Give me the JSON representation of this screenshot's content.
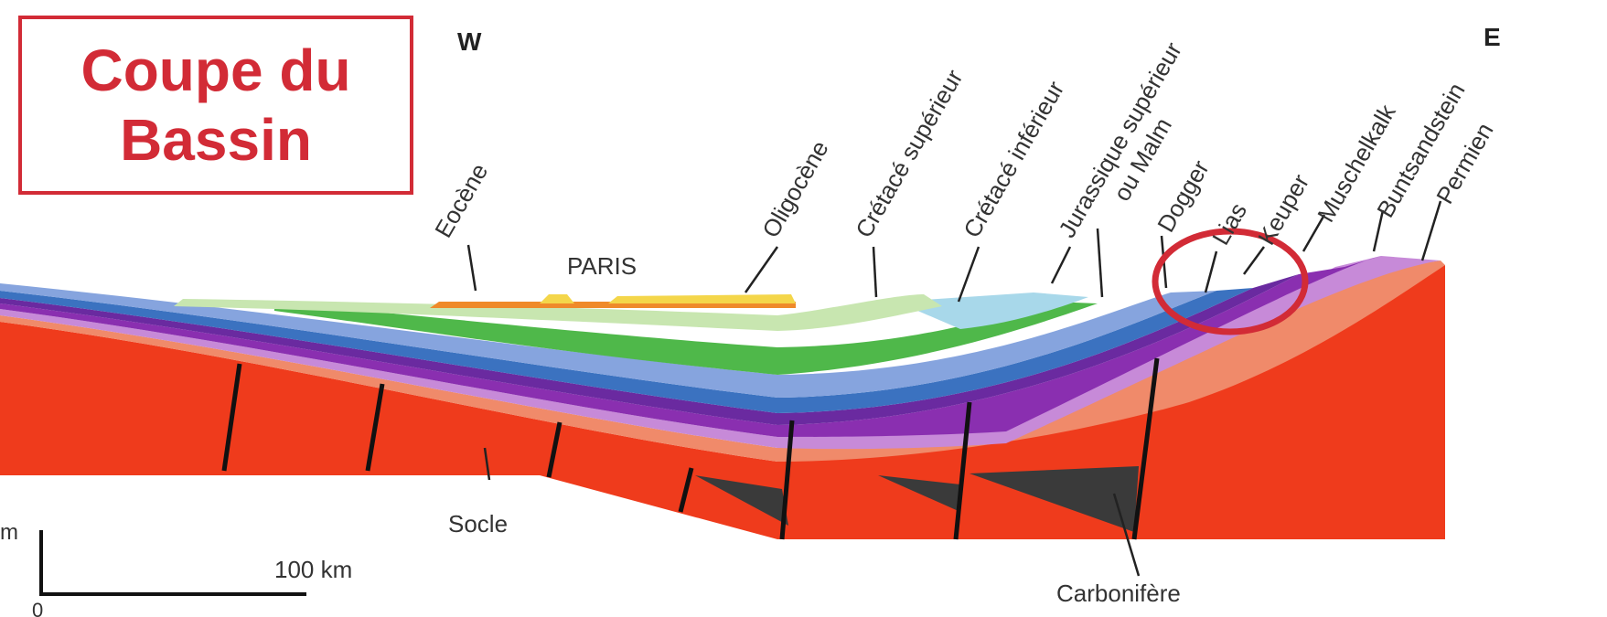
{
  "title": {
    "line1": "Coupe du",
    "line2": "Bassin"
  },
  "orientation": {
    "west": "W",
    "east": "E"
  },
  "labels": {
    "paris": "PARIS",
    "socle": "Socle",
    "carbonifere": "Carbonifère",
    "eocene": "Eocène",
    "oligocene": "Oligocène",
    "cretace_superieur": "Crétacé supérieur",
    "cretace_inferieur": "Crétacé inférieur",
    "jurassique_superieur": "Jurassique supérieur",
    "ou_malm": "ou Malm",
    "dogger": "Dogger",
    "lias": "Lias",
    "keuper": "Keuper",
    "muschelkalk": "Muschelkalk",
    "buntsandstein": "Buntsandstein",
    "permien": "Permien"
  },
  "scale": {
    "distance_label": "100 km",
    "depth_unit": "m",
    "origin": "0"
  },
  "colors": {
    "highlight": "#d22b36",
    "socle": "#ef3b1c",
    "permien": "#f08a6a",
    "carbonifere": "#3a3a3a",
    "trias_violet": "#8a2fb0",
    "trias_light": "#c78ad8",
    "lias": "#6a2aa0",
    "dogger": "#3b72c0",
    "malm": "#86a4de",
    "cretace_inf": "#4fb84a",
    "cretace_sup": "#c8e6b0",
    "cretace_sup_light": "#a8d8ea",
    "oligocene": "#f4d64a",
    "eocene": "#ef8a2a"
  }
}
